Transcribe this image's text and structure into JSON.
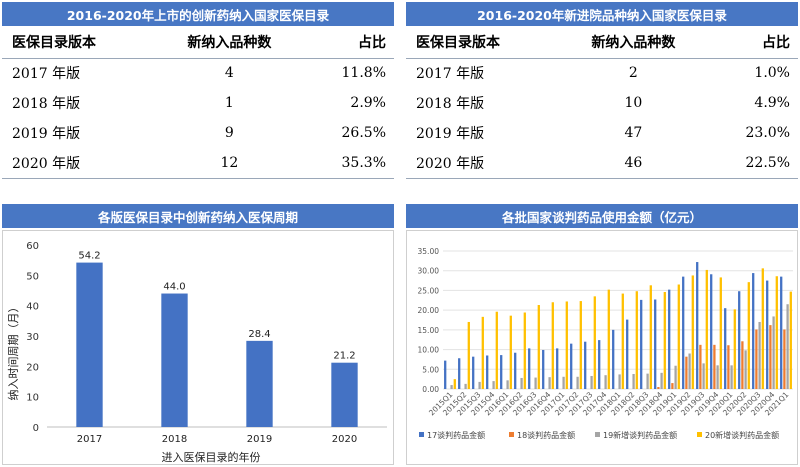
{
  "table1": {
    "title": "2016-2020年上市的创新药纳入国家医保目录",
    "headers": [
      "医保目录版本",
      "新纳入品种数",
      "占比"
    ],
    "rows": [
      {
        "version": "2017 年版",
        "count": "4",
        "ratio": "11.8%"
      },
      {
        "version": "2018 年版",
        "count": "1",
        "ratio": "2.9%"
      },
      {
        "version": "2019 年版",
        "count": "9",
        "ratio": "26.5%"
      },
      {
        "version": "2020 年版",
        "count": "12",
        "ratio": "35.3%"
      }
    ]
  },
  "table2": {
    "title": "2016-2020年新进院品种纳入国家医保目录",
    "headers": [
      "医保目录版本",
      "新纳入品种数",
      "占比"
    ],
    "rows": [
      {
        "version": "2017 年版",
        "count": "2",
        "ratio": "1.0%"
      },
      {
        "version": "2018 年版",
        "count": "10",
        "ratio": "4.9%"
      },
      {
        "version": "2019 年版",
        "count": "47",
        "ratio": "23.0%"
      },
      {
        "version": "2020 年版",
        "count": "46",
        "ratio": "22.5%"
      }
    ]
  },
  "chart_data": [
    {
      "type": "bar",
      "title": "各版医保目录中创新药纳入医保周期",
      "xlabel": "进入医保目录的年份",
      "ylabel": "纳入时间周期（月）",
      "categories": [
        "2017",
        "2018",
        "2019",
        "2020"
      ],
      "values": [
        54.2,
        44.0,
        28.4,
        21.2
      ],
      "value_labels": [
        "54.2",
        "44.0",
        "28.4",
        "21.2"
      ],
      "ylim": [
        0,
        60
      ],
      "yticks": [
        "0",
        "10",
        "20",
        "30",
        "40",
        "50",
        "60"
      ],
      "color": "#4472c4",
      "grid": false
    },
    {
      "type": "bar",
      "title": "各批国家谈判药品使用金额（亿元）",
      "categories": [
        "2015Q1",
        "2015Q2",
        "2015Q3",
        "2015Q4",
        "2016Q1",
        "2016Q2",
        "2016Q3",
        "2016Q4",
        "2017Q1",
        "2017Q2",
        "2017Q3",
        "2017Q4",
        "2018Q1",
        "2018Q2",
        "2018Q3",
        "2018Q4",
        "2019Q1",
        "2019Q2",
        "2019Q3",
        "2019Q4",
        "2020Q1",
        "2020Q2",
        "2020Q3",
        "2020Q4",
        "2021Q1"
      ],
      "ylim": [
        0,
        35
      ],
      "yticks": [
        "0.00",
        "5.00",
        "10.00",
        "15.00",
        "20.00",
        "25.00",
        "30.00",
        "35.00"
      ],
      "grid": true,
      "legend_position": "bottom",
      "series": [
        {
          "name": "17谈判药品金额",
          "color": "#4472c4",
          "values": [
            7.2,
            7.8,
            8.2,
            8.5,
            8.6,
            9.2,
            10.3,
            9.9,
            10.3,
            11.5,
            12.0,
            12.4,
            15.0,
            17.6,
            22.6,
            22.7,
            25.2,
            28.5,
            32.2,
            29.1,
            20.5,
            24.8,
            29.4,
            27.5,
            28.5
          ]
        },
        {
          "name": "18谈判药品金额",
          "color": "#ed7d31",
          "values": [
            0,
            0,
            0,
            0,
            0,
            0,
            0,
            0,
            0,
            0,
            0,
            0,
            0,
            0,
            0,
            0.5,
            1.5,
            8.2,
            11.2,
            11.2,
            11.1,
            12.1,
            15.1,
            16.2,
            15.1
          ]
        },
        {
          "name": "19新增谈判药品金额",
          "color": "#a5a5a5",
          "values": [
            1.0,
            1.3,
            1.8,
            2.0,
            2.2,
            2.8,
            2.9,
            3.0,
            3.1,
            3.1,
            3.3,
            3.5,
            3.7,
            3.8,
            3.9,
            4.1,
            5.9,
            9.0,
            6.5,
            6.0,
            6.0,
            9.8,
            17.0,
            18.4,
            21.5
          ]
        },
        {
          "name": "20新增谈判药品金额",
          "color": "#ffc000",
          "values": [
            2.5,
            17.0,
            18.3,
            19.6,
            18.6,
            19.4,
            21.3,
            22.0,
            22.2,
            22.3,
            23.5,
            25.2,
            24.2,
            24.8,
            26.3,
            24.6,
            26.5,
            28.8,
            30.2,
            28.3,
            20.2,
            27.1,
            30.6,
            28.6,
            24.7
          ]
        }
      ]
    }
  ]
}
